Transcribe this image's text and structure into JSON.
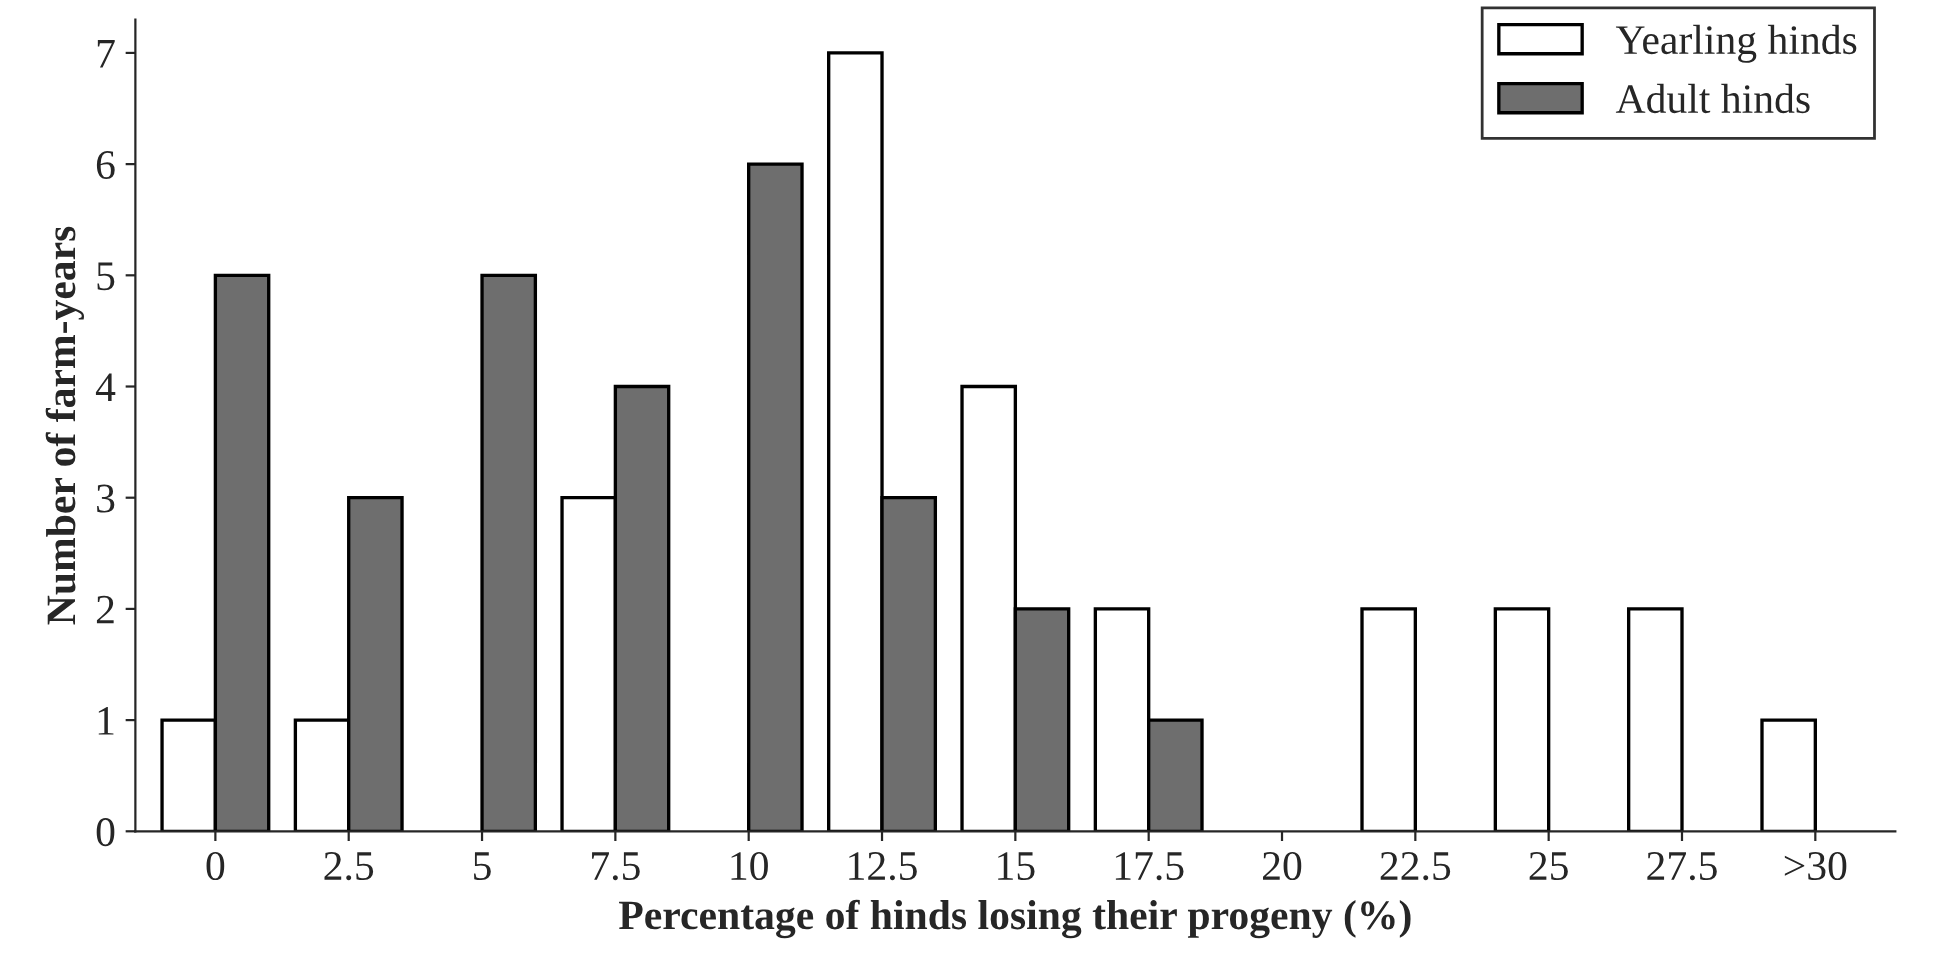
{
  "chart_data": {
    "type": "bar",
    "xlabel": "Percentage of hinds losing their progeny (%)",
    "ylabel": "Number of farm-years",
    "categories": [
      "0",
      "2.5",
      "5",
      "7.5",
      "10",
      "12.5",
      "15",
      "17.5",
      "20",
      "22.5",
      "25",
      "27.5",
      ">30"
    ],
    "series": [
      {
        "name": "Yearling hinds",
        "color": "#ffffff",
        "values": [
          1,
          1,
          0,
          3,
          0,
          7,
          4,
          2,
          0,
          2,
          2,
          2,
          1
        ]
      },
      {
        "name": "Adult hinds",
        "color": "#6e6e6e",
        "values": [
          5,
          3,
          5,
          4,
          6,
          3,
          2,
          1,
          0,
          0,
          0,
          0,
          0
        ]
      }
    ],
    "ylim": [
      0,
      7.3
    ],
    "yticks": [
      0,
      1,
      2,
      3,
      4,
      5,
      6,
      7
    ],
    "grid": false,
    "legend": "top right"
  }
}
